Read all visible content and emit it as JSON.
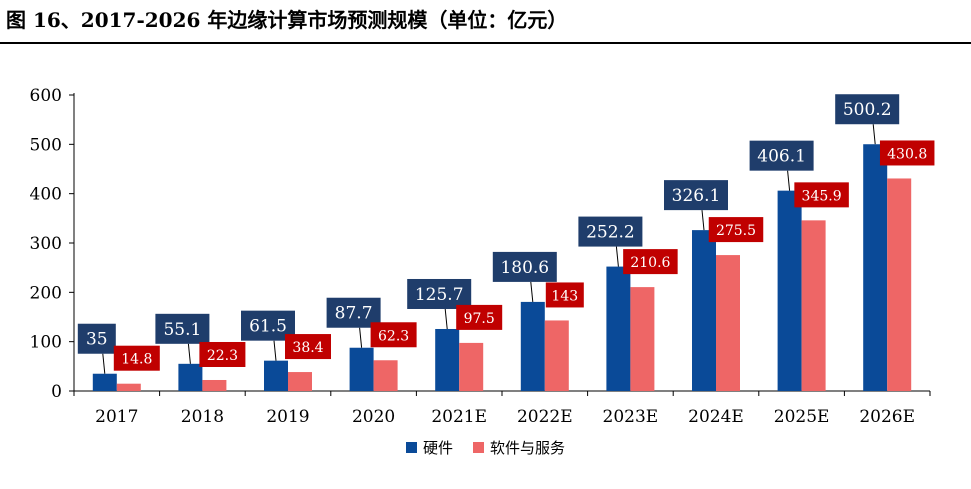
{
  "title": "图 16、2017-2026 年边缘计算市场预测规模（单位：亿元）",
  "colors": {
    "hardware_bar": "#0a4a98",
    "software_bar": "#ee6666",
    "hardware_label_bg": "#1f3d6b",
    "software_label_bg": "#c00000",
    "label_text": "#ffffff"
  },
  "chart_data": {
    "type": "bar",
    "categories": [
      "2017",
      "2018",
      "2019",
      "2020",
      "2021E",
      "2022E",
      "2023E",
      "2024E",
      "2025E",
      "2026E"
    ],
    "series": [
      {
        "name": "硬件",
        "values": [
          35,
          55.1,
          61.5,
          87.7,
          125.7,
          180.6,
          252.2,
          326.1,
          406.1,
          500.2
        ]
      },
      {
        "name": "软件与服务",
        "values": [
          14.8,
          22.3,
          38.4,
          62.3,
          97.5,
          143,
          210.6,
          275.5,
          345.9,
          430.8
        ]
      }
    ],
    "data_labels": [
      [
        "35",
        "55.1",
        "61.5",
        "87.7",
        "125.7",
        "180.6",
        "252.2",
        "326.1",
        "406.1",
        "500.2"
      ],
      [
        "14.8",
        "22.3",
        "38.4",
        "62.3",
        "97.5",
        "143",
        "210.6",
        "275.5",
        "345.9",
        "430.8"
      ]
    ],
    "ylim": [
      0,
      600
    ],
    "yticks": [
      0,
      100,
      200,
      300,
      400,
      500,
      600
    ],
    "ytick_labels": [
      "0",
      "100",
      "200",
      "300",
      "400",
      "500",
      "600"
    ],
    "legend_position": "bottom",
    "grid": false
  }
}
